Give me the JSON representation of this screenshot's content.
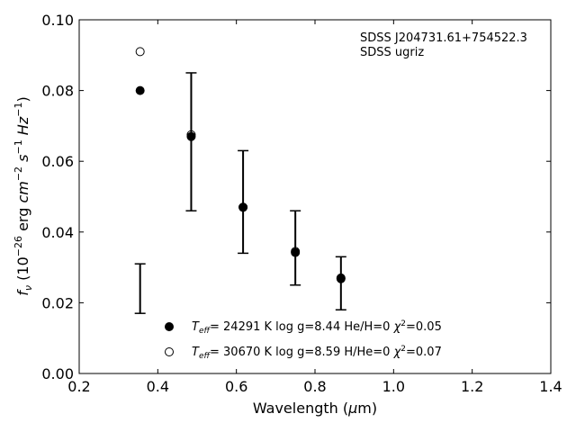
{
  "chart_data": {
    "type": "scatter",
    "title": "",
    "xlabel": "Wavelength (μm)",
    "ylabel": "f_ν (10^−26 erg cm^−2 s^−1 Hz^−1)",
    "xlim": [
      0.2,
      1.4
    ],
    "ylim": [
      0.0,
      0.1
    ],
    "xticks": [
      "0.2",
      "0.4",
      "0.6",
      "0.8",
      "1.0",
      "1.2",
      "1.4"
    ],
    "yticks": [
      "0.00",
      "0.02",
      "0.04",
      "0.06",
      "0.08",
      "0.10"
    ],
    "grid": false,
    "annotation": [
      "SDSS J204731.61+754522.3",
      "SDSS ugriz"
    ],
    "observed": [
      {
        "x": 0.355,
        "y": 0.024,
        "yerr_low": 0.017,
        "yerr_high": 0.031
      },
      {
        "x": 0.485,
        "y": 0.0655,
        "yerr_low": 0.046,
        "yerr_high": 0.085
      },
      {
        "x": 0.617,
        "y": 0.0485,
        "yerr_low": 0.034,
        "yerr_high": 0.063
      },
      {
        "x": 0.75,
        "y": 0.0355,
        "yerr_low": 0.025,
        "yerr_high": 0.046
      },
      {
        "x": 0.866,
        "y": 0.0255,
        "yerr_low": 0.018,
        "yerr_high": 0.033
      }
    ],
    "series": [
      {
        "name": "T_eff= 24291 K  log g=8.44  He/H=0  χ²=0.05",
        "marker": "filled-circle",
        "x": [
          0.355,
          0.485,
          0.617,
          0.75,
          0.866
        ],
        "y": [
          0.08,
          0.067,
          0.047,
          0.0342,
          0.0268
        ]
      },
      {
        "name": "T_eff= 30670 K  log g=8.59  H/He=0  χ²=0.07",
        "marker": "open-circle",
        "x": [
          0.355,
          0.485,
          0.617,
          0.75,
          0.866
        ],
        "y": [
          0.091,
          0.0675,
          0.047,
          0.0345,
          0.027
        ]
      }
    ],
    "legend_position": "bottom-center"
  }
}
